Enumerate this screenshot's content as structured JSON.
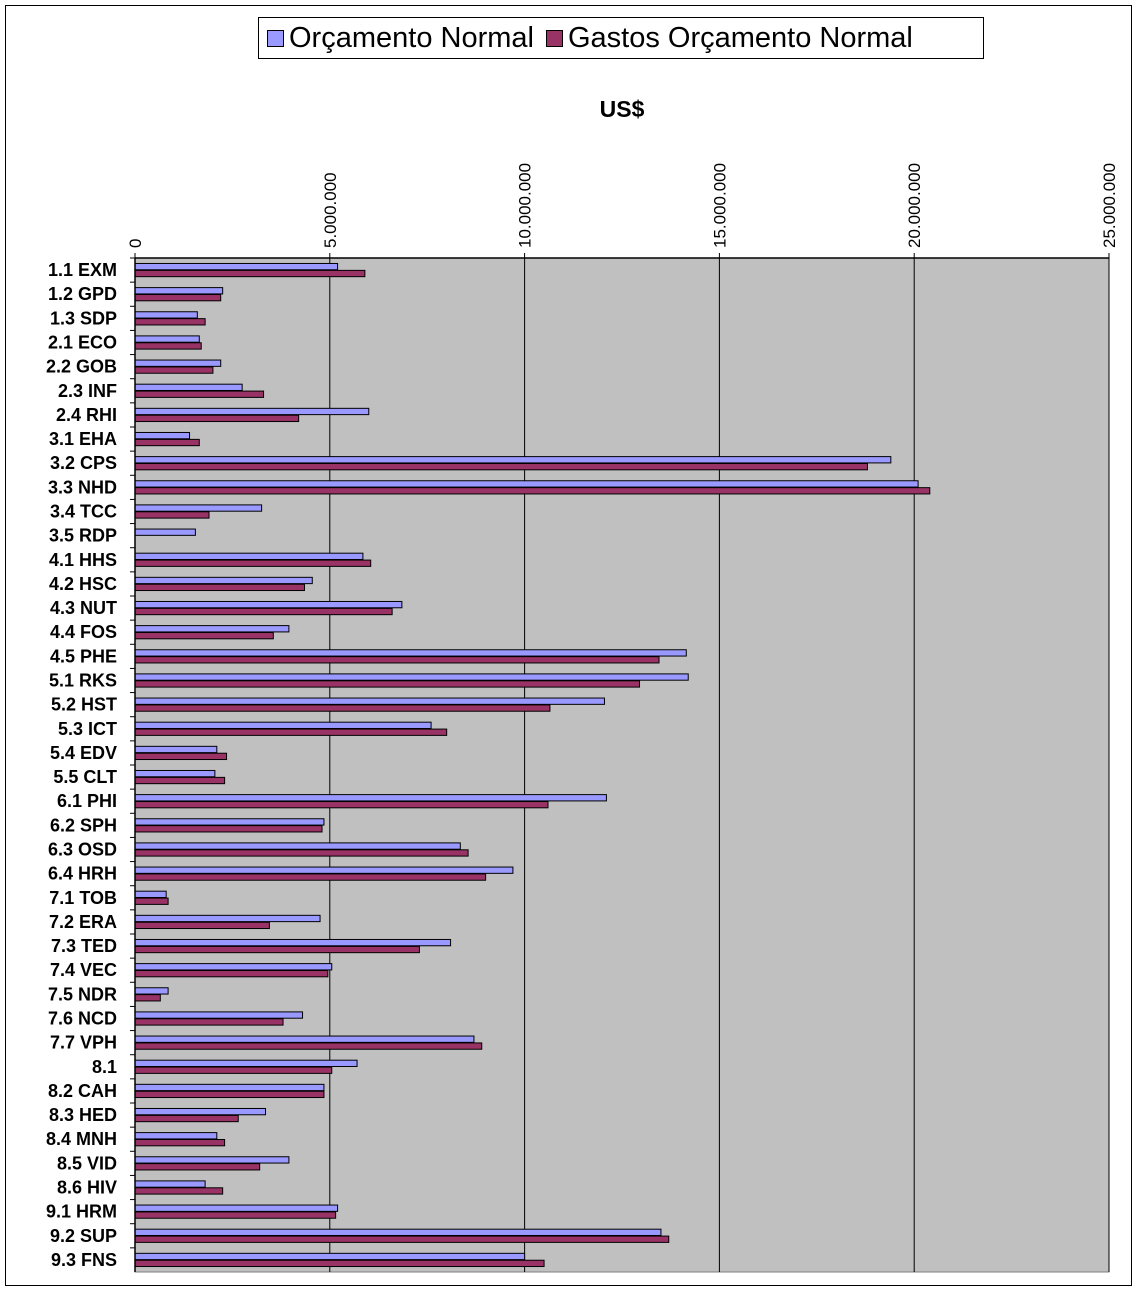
{
  "chart_data": {
    "type": "bar",
    "orientation": "horizontal",
    "title": "US$",
    "xlabel": "",
    "ylabel": "",
    "xlim": [
      0,
      25000000
    ],
    "x_ticks": [
      "0",
      "5.000.000",
      "10.000.000",
      "15.000.000",
      "20.000.000",
      "25.000.000"
    ],
    "grid": true,
    "legend_position": "top",
    "plot_background": "#c0c0c0",
    "categories": [
      "1.1 EXM",
      "1.2 GPD",
      "1.3 SDP",
      "2.1 ECO",
      "2.2 GOB",
      "2.3 INF",
      "2.4 RHI",
      "3.1 EHA",
      "3.2 CPS",
      "3.3 NHD",
      "3.4 TCC",
      "3.5 RDP",
      "4.1 HHS",
      "4.2 HSC",
      "4.3 NUT",
      "4.4 FOS",
      "4.5 PHE",
      "5.1 RKS",
      "5.2 HST",
      "5.3 ICT",
      "5.4 EDV",
      "5.5 CLT",
      "6.1 PHI",
      "6.2 SPH",
      "6.3 OSD",
      "6.4 HRH",
      "7.1 TOB",
      "7.2 ERA",
      "7.3 TED",
      "7.4 VEC",
      "7.5 NDR",
      "7.6 NCD",
      "7.7 VPH",
      "8.1",
      "8.2 CAH",
      "8.3 HED",
      "8.4 MNH",
      "8.5 VID",
      "8.6 HIV",
      "9.1 HRM",
      "9.2 SUP",
      "9.3 FNS"
    ],
    "series": [
      {
        "name": "Orçamento Normal",
        "color": "#9999ff",
        "values": [
          5200000,
          2250000,
          1600000,
          1650000,
          2200000,
          2750000,
          6000000,
          1400000,
          19400000,
          20100000,
          3250000,
          1550000,
          5850000,
          4550000,
          6850000,
          3950000,
          14150000,
          14200000,
          12050000,
          7600000,
          2100000,
          2050000,
          12100000,
          4850000,
          8350000,
          9700000,
          800000,
          4750000,
          8100000,
          5050000,
          850000,
          4300000,
          8700000,
          5700000,
          4850000,
          3350000,
          2100000,
          3950000,
          1800000,
          5200000,
          13500000,
          10000000
        ]
      },
      {
        "name": "Gastos Orçamento Normal",
        "color": "#993366",
        "values": [
          5900000,
          2200000,
          1800000,
          1700000,
          2000000,
          3300000,
          4200000,
          1650000,
          18800000,
          20400000,
          1900000,
          0,
          6050000,
          4350000,
          6600000,
          3550000,
          13450000,
          12950000,
          10650000,
          8000000,
          2350000,
          2300000,
          10600000,
          4800000,
          8550000,
          9000000,
          850000,
          3450000,
          7300000,
          4950000,
          650000,
          3800000,
          8900000,
          5050000,
          4850000,
          2650000,
          2300000,
          3200000,
          2250000,
          5150000,
          13700000,
          10500000
        ]
      }
    ]
  }
}
